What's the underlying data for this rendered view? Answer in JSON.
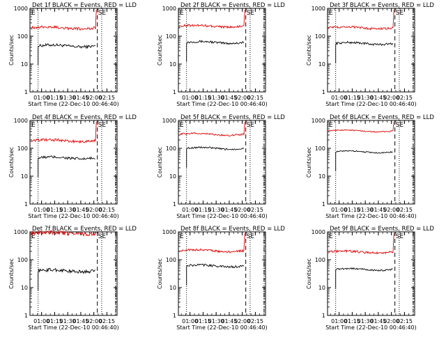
{
  "colors": {
    "events": "#000000",
    "lld": "#dd0000",
    "axis": "#000000"
  },
  "chart_data": [
    {
      "type": "line",
      "title": "Det 1f BLACK = Events, RED = LLD",
      "xlabel": "Start Time (22-Dec-10 00:46:40)",
      "ylabel": "Counts/sec",
      "yscale": "log",
      "ylim": [
        1,
        1000
      ],
      "yticks": [
        "1",
        "10",
        "100",
        "1000"
      ],
      "xticks": [
        "01:00",
        "01:15",
        "01:30",
        "01:45",
        "02:00",
        "02:15"
      ],
      "markers": [
        "E",
        "SE"
      ],
      "series": [
        {
          "name": "Events",
          "start": "00:56",
          "end": "02:02",
          "level": 45,
          "noise": 0.05
        },
        {
          "name": "LLD",
          "start": "00:46",
          "end": "02:02",
          "level": 200,
          "noise": 0.05
        }
      ]
    },
    {
      "type": "line",
      "title": "Det 2f BLACK = Events, RED = LLD",
      "xlabel": "Start Time (22-Dec-10 00:46:40)",
      "ylabel": "Counts/sec",
      "yscale": "log",
      "ylim": [
        1,
        1000
      ],
      "yticks": [
        "1",
        "10",
        "100",
        "1000"
      ],
      "xticks": [
        "01:00",
        "01:15",
        "01:30",
        "01:45",
        "02:00",
        "02:15"
      ],
      "markers": [
        "E",
        "SE"
      ],
      "series": [
        {
          "name": "Events",
          "start": "00:56",
          "end": "02:02",
          "level": 60,
          "noise": 0.04
        },
        {
          "name": "LLD",
          "start": "00:46",
          "end": "02:02",
          "level": 230,
          "noise": 0.04
        }
      ]
    },
    {
      "type": "line",
      "title": "Det 3f BLACK = Events, RED = LLD",
      "xlabel": "Start Time (22-Dec-10 00:46:40)",
      "ylabel": "Counts/sec",
      "yscale": "log",
      "ylim": [
        1,
        1000
      ],
      "yticks": [
        "1",
        "10",
        "100",
        "1000"
      ],
      "xticks": [
        "01:00",
        "01:15",
        "01:30",
        "01:45",
        "02:00",
        "02:15"
      ],
      "markers": [
        "E",
        "SE"
      ],
      "series": [
        {
          "name": "Events",
          "start": "00:56",
          "end": "02:02",
          "level": 55,
          "noise": 0.04
        },
        {
          "name": "LLD",
          "start": "00:46",
          "end": "02:02",
          "level": 200,
          "noise": 0.04
        }
      ]
    },
    {
      "type": "line",
      "title": "Det 4f BLACK = Events, RED = LLD",
      "xlabel": "Start Time (22-Dec-10 00:46:40)",
      "ylabel": "Counts/sec",
      "yscale": "log",
      "ylim": [
        1,
        1000
      ],
      "yticks": [
        "1",
        "10",
        "100",
        "1000"
      ],
      "xticks": [
        "01:00",
        "01:15",
        "01:30",
        "01:45",
        "02:00",
        "02:15"
      ],
      "markers": [
        "E",
        "SE"
      ],
      "series": [
        {
          "name": "Events",
          "start": "00:56",
          "end": "02:02",
          "level": 45,
          "noise": 0.05
        },
        {
          "name": "LLD",
          "start": "00:46",
          "end": "02:02",
          "level": 190,
          "noise": 0.05
        }
      ]
    },
    {
      "type": "line",
      "title": "Det 5f BLACK = Events, RED = LLD",
      "xlabel": "Start Time (22-Dec-10 00:46:40)",
      "ylabel": "Counts/sec",
      "yscale": "log",
      "ylim": [
        1,
        1000
      ],
      "yticks": [
        "1",
        "10",
        "100",
        "1000"
      ],
      "xticks": [
        "01:00",
        "01:15",
        "01:30",
        "01:45",
        "02:00",
        "02:15"
      ],
      "markers": [
        "E",
        "SE"
      ],
      "series": [
        {
          "name": "Events",
          "start": "00:56",
          "end": "02:02",
          "level": 100,
          "noise": 0.03
        },
        {
          "name": "LLD",
          "start": "00:46",
          "end": "02:02",
          "level": 320,
          "noise": 0.03
        }
      ]
    },
    {
      "type": "line",
      "title": "Det 6f BLACK = Events, RED = LLD",
      "xlabel": "Start Time (22-Dec-10 00:46:40)",
      "ylabel": "Counts/sec",
      "yscale": "log",
      "ylim": [
        1,
        1000
      ],
      "yticks": [
        "1",
        "10",
        "100",
        "1000"
      ],
      "xticks": [
        "01:00",
        "01:15",
        "01:30",
        "01:45",
        "02:00",
        "02:15"
      ],
      "markers": [
        "E",
        "SE"
      ],
      "series": [
        {
          "name": "Events",
          "start": "00:56",
          "end": "02:02",
          "level": 75,
          "noise": 0.02
        },
        {
          "name": "LLD",
          "start": "00:46",
          "end": "02:02",
          "level": 420,
          "noise": 0.02
        }
      ]
    },
    {
      "type": "line",
      "title": "Det 7f BLACK = Events, RED = LLD",
      "xlabel": "Start Time (22-Dec-10 00:46:40)",
      "ylabel": "Counts/sec",
      "yscale": "log",
      "ylim": [
        1,
        1000
      ],
      "yticks": [
        "1",
        "10",
        "100",
        "1000"
      ],
      "xticks": [
        "01:00",
        "01:15",
        "01:30",
        "01:45",
        "02:00",
        "02:15"
      ],
      "markers": [
        "E",
        "SE"
      ],
      "series": [
        {
          "name": "Events",
          "start": "00:56",
          "end": "02:02",
          "level": 40,
          "noise": 0.06
        },
        {
          "name": "LLD",
          "start": "00:46",
          "end": "02:02",
          "level": 900,
          "noise": 0.07
        }
      ]
    },
    {
      "type": "line",
      "title": "Det 8f BLACK = Events, RED = LLD",
      "xlabel": "Start Time (22-Dec-10 00:46:40)",
      "ylabel": "Counts/sec",
      "yscale": "log",
      "ylim": [
        1,
        1000
      ],
      "yticks": [
        "1",
        "10",
        "100",
        "1000"
      ],
      "xticks": [
        "01:00",
        "01:15",
        "01:30",
        "01:45",
        "02:00",
        "02:15"
      ],
      "markers": [
        "E",
        "SE"
      ],
      "series": [
        {
          "name": "Events",
          "start": "00:56",
          "end": "02:02",
          "level": 60,
          "noise": 0.04
        },
        {
          "name": "LLD",
          "start": "00:46",
          "end": "02:02",
          "level": 210,
          "noise": 0.04
        }
      ]
    },
    {
      "type": "line",
      "title": "Det 9f BLACK = Events, RED = LLD",
      "xlabel": "Start Time (22-Dec-10 00:46:40)",
      "ylabel": "Counts/sec",
      "yscale": "log",
      "ylim": [
        1,
        1000
      ],
      "yticks": [
        "1",
        "10",
        "100",
        "1000"
      ],
      "xticks": [
        "01:00",
        "01:15",
        "01:30",
        "01:45",
        "02:00",
        "02:15"
      ],
      "markers": [
        "E",
        "SE"
      ],
      "series": [
        {
          "name": "Events",
          "start": "00:56",
          "end": "02:02",
          "level": 45,
          "noise": 0.03
        },
        {
          "name": "LLD",
          "start": "00:46",
          "end": "02:02",
          "level": 190,
          "noise": 0.04
        }
      ]
    }
  ]
}
